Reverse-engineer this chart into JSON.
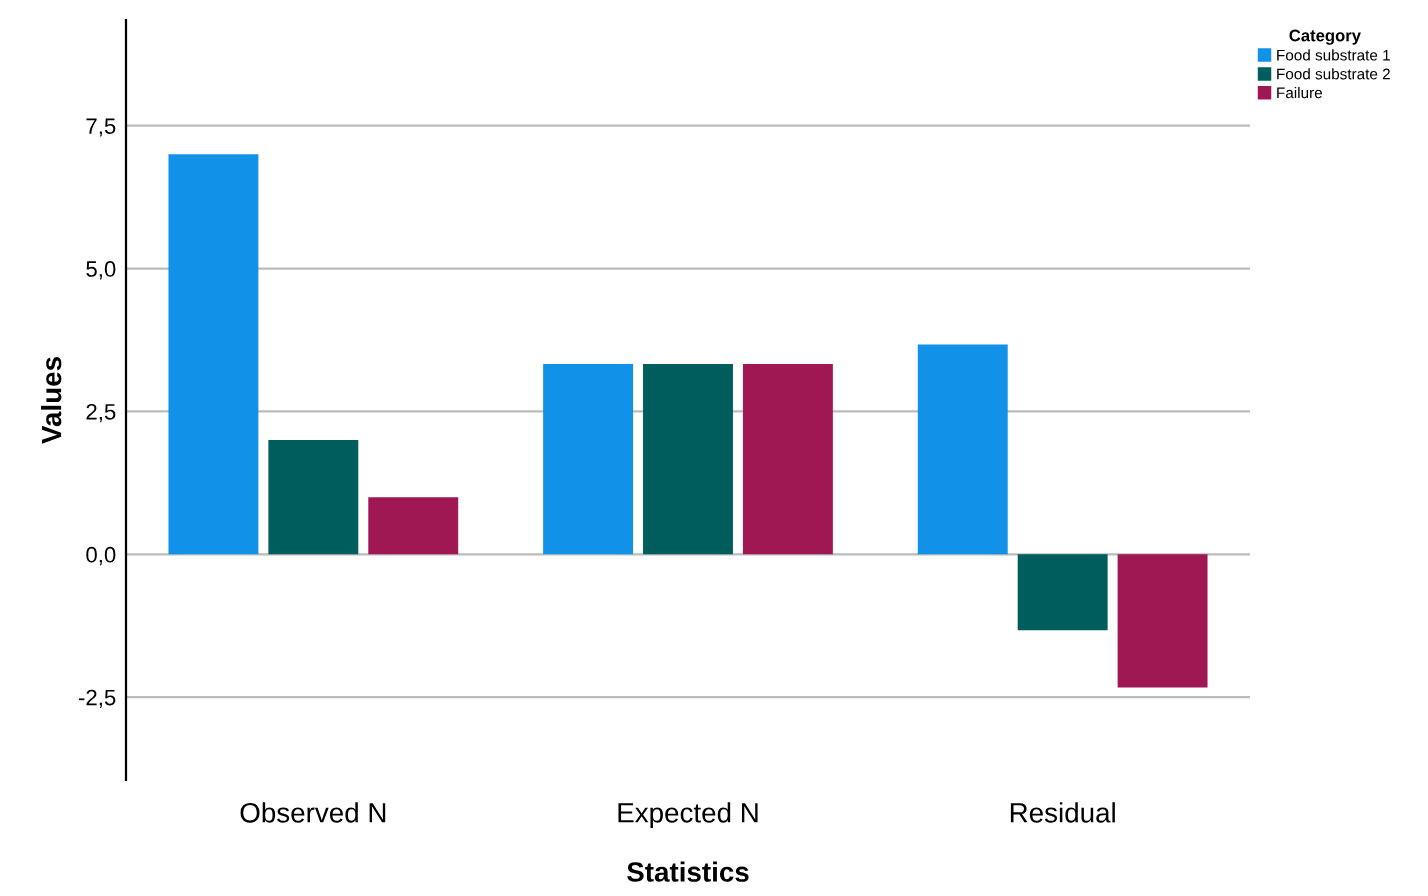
{
  "chart_data": {
    "type": "bar",
    "xlabel": "Statistics",
    "ylabel": "Values",
    "legend_title": "Category",
    "categories": [
      "Observed N",
      "Expected N",
      "Residual"
    ],
    "series": [
      {
        "name": "Food substrate 1",
        "color": "#1192e8",
        "values": [
          7,
          3.33,
          3.67
        ]
      },
      {
        "name": "Food substrate 2",
        "color": "#005d5d",
        "values": [
          2,
          3.33,
          -1.33
        ]
      },
      {
        "name": "Failure",
        "color": "#9f1853",
        "values": [
          1,
          3.33,
          -2.33
        ]
      }
    ],
    "ylim": [
      -3.95,
      9.35
    ],
    "yticks": [
      {
        "value": -2.5,
        "label": "-2,5"
      },
      {
        "value": 0,
        "label": "0,0"
      },
      {
        "value": 2.5,
        "label": "2,5"
      },
      {
        "value": 5,
        "label": "5,0"
      },
      {
        "value": 7.5,
        "label": "7,5"
      }
    ],
    "grid": "y",
    "legend": "top right"
  }
}
